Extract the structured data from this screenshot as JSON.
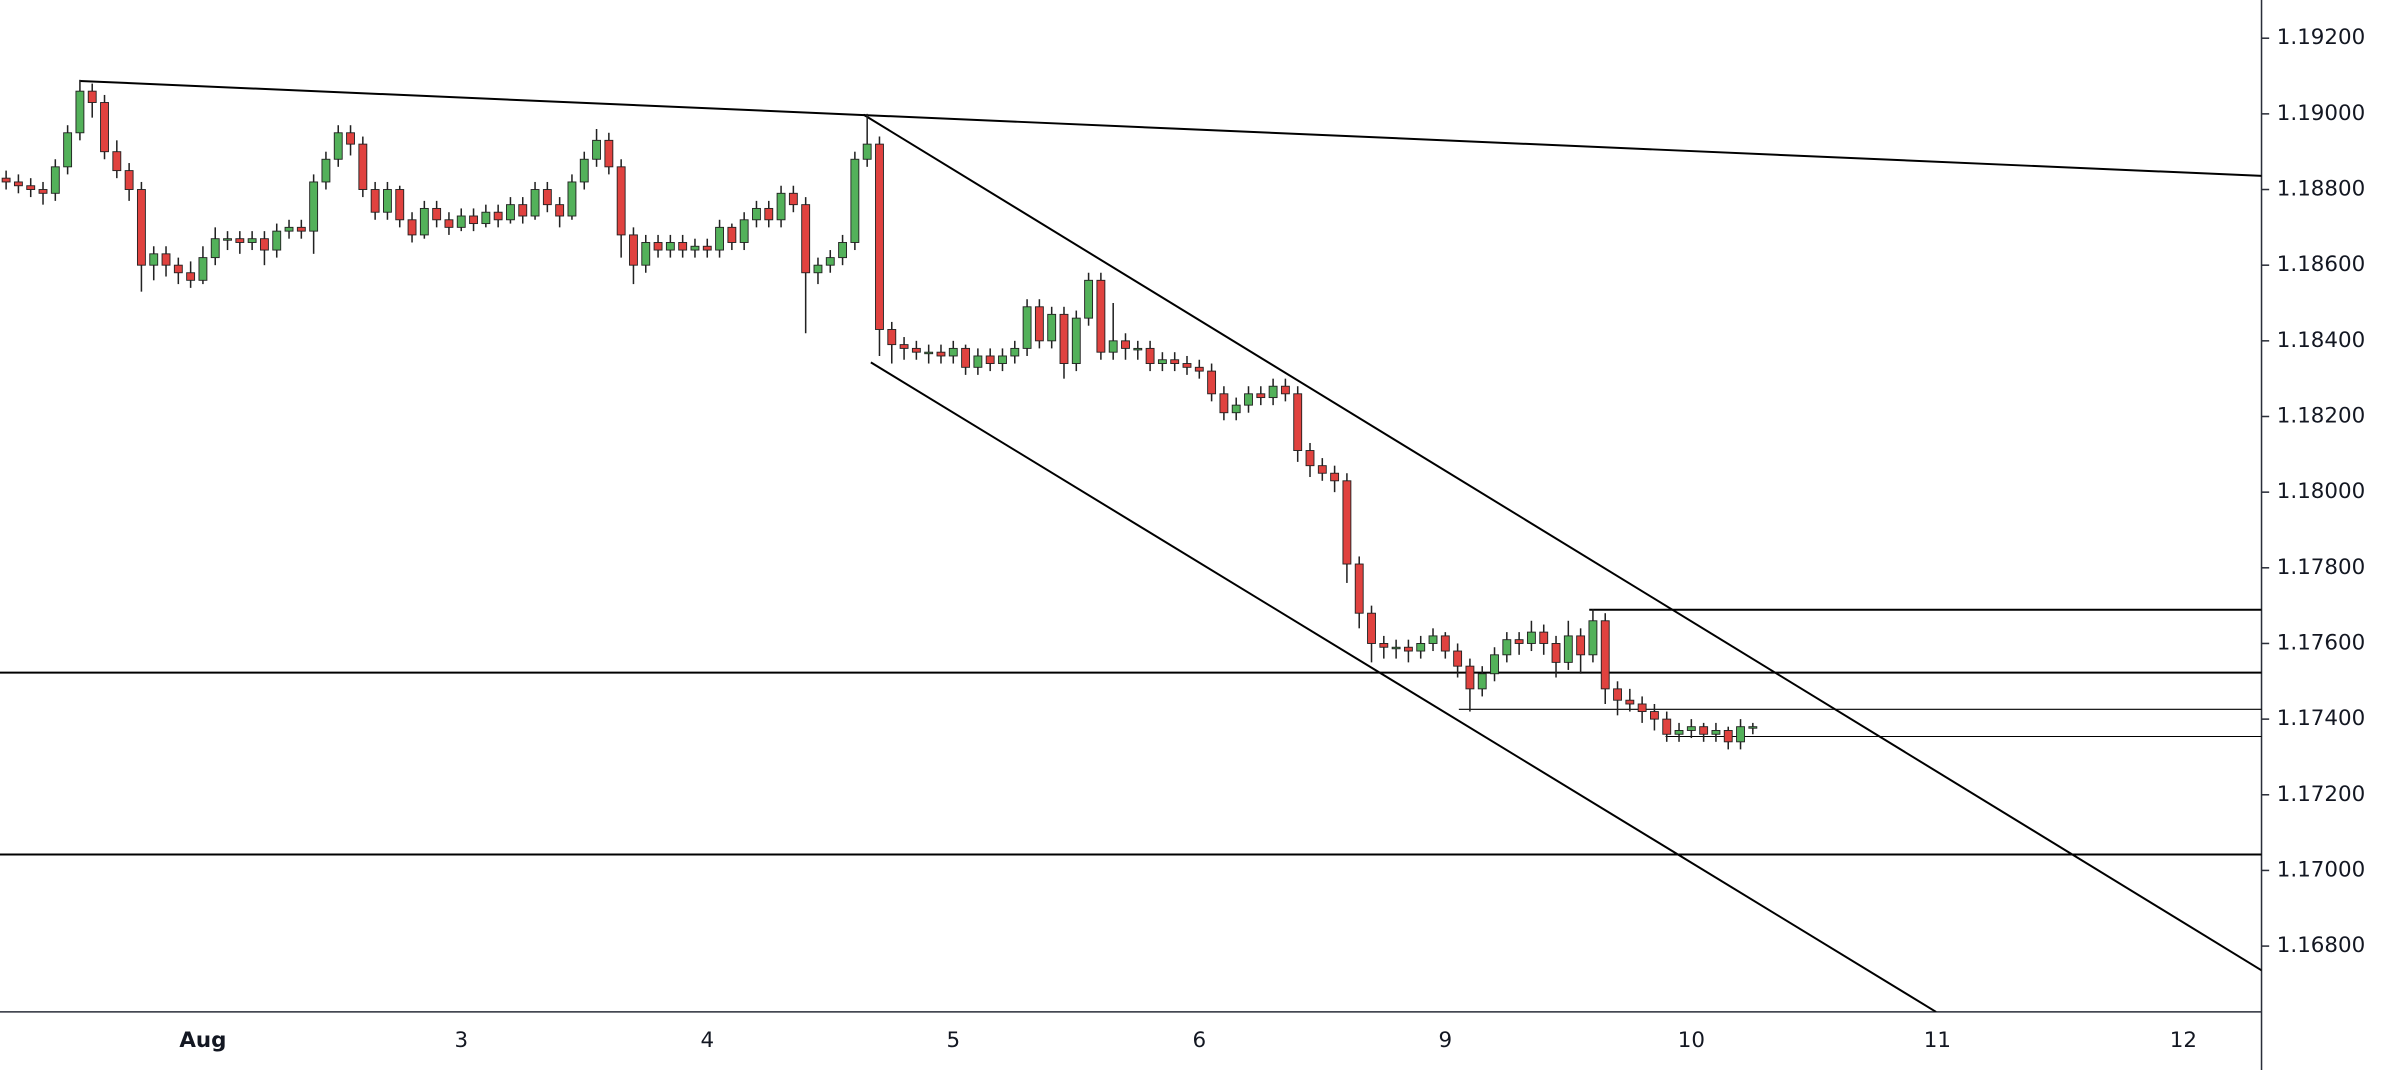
{
  "chart_data": {
    "type": "candlestick",
    "categories": [
      null,
      null,
      null,
      null,
      null,
      null,
      null,
      null,
      null,
      null,
      null,
      null,
      null,
      null,
      null,
      null,
      "Aug",
      null,
      null,
      null,
      null,
      null,
      null,
      null,
      null,
      null,
      null,
      null,
      null,
      null,
      null,
      null,
      null,
      null,
      null,
      null,
      null,
      "3",
      null,
      null,
      null,
      null,
      null,
      null,
      null,
      null,
      null,
      null,
      null,
      null,
      null,
      null,
      null,
      null,
      null,
      null,
      null,
      "4",
      null,
      null,
      null,
      null,
      null,
      null,
      null,
      null,
      null,
      null,
      null,
      null,
      null,
      null,
      null,
      null,
      null,
      null,
      null,
      "5",
      null,
      null,
      null,
      null,
      null,
      null,
      null,
      null,
      null,
      null,
      null,
      null,
      null,
      null,
      null,
      null,
      null,
      null,
      null,
      "6",
      null,
      null,
      null,
      null,
      null,
      null,
      null,
      null,
      null,
      null,
      null,
      null,
      null,
      null,
      null,
      null,
      null,
      null,
      null,
      "9",
      null,
      null,
      null,
      null,
      null,
      null,
      null,
      null,
      null,
      null,
      null,
      null,
      null,
      null,
      null,
      null,
      null,
      null,
      null,
      "10",
      null,
      null,
      null,
      null,
      null,
      null,
      null,
      null,
      null,
      null,
      null,
      null,
      null,
      null,
      null,
      null,
      null,
      null,
      null,
      "11",
      null,
      null,
      null,
      null,
      null,
      null,
      null,
      null,
      null,
      null,
      null,
      null,
      null,
      null,
      null,
      null,
      null,
      null,
      null,
      "12"
    ],
    "open": [
      1.1883,
      1.1882,
      1.1881,
      1.188,
      1.1879,
      1.1886,
      1.1895,
      1.1906,
      1.1903,
      1.189,
      1.1885,
      1.188,
      1.186,
      1.1863,
      1.186,
      1.1858,
      1.1856,
      1.1862,
      1.1867,
      1.1867,
      1.1866,
      1.1867,
      1.1864,
      1.1869,
      1.187,
      1.1869,
      1.1882,
      1.1888,
      1.1895,
      1.1892,
      1.188,
      1.1874,
      1.188,
      1.1872,
      1.1868,
      1.1875,
      1.1872,
      1.187,
      1.1873,
      1.1871,
      1.1874,
      1.1872,
      1.1876,
      1.1873,
      1.188,
      1.1876,
      1.1873,
      1.1882,
      1.1888,
      1.1893,
      1.1886,
      1.1868,
      1.186,
      1.1866,
      1.1864,
      1.1866,
      1.1864,
      1.1865,
      1.1864,
      1.187,
      1.1866,
      1.1872,
      1.1875,
      1.1872,
      1.1879,
      1.1876,
      1.1858,
      1.186,
      1.1862,
      1.1866,
      1.1888,
      1.1892,
      1.1843,
      1.1839,
      1.1838,
      1.1837,
      1.1837,
      1.1836,
      1.1838,
      1.1833,
      1.1836,
      1.1834,
      1.1836,
      1.1838,
      1.1849,
      1.184,
      1.1847,
      1.1834,
      1.1846,
      1.1856,
      1.1837,
      1.184,
      1.1838,
      1.1838,
      1.1834,
      1.1835,
      1.1834,
      1.1833,
      1.1832,
      1.1826,
      1.1821,
      1.1823,
      1.1826,
      1.1825,
      1.1828,
      1.1826,
      1.1811,
      1.1807,
      1.1805,
      1.1803,
      1.1781,
      1.1768,
      1.176,
      1.1759,
      1.1759,
      1.1758,
      1.176,
      1.1762,
      1.1758,
      1.1754,
      1.1748,
      1.1752,
      1.1757,
      1.1761,
      1.176,
      1.1763,
      1.176,
      1.1755,
      1.1762,
      1.1757,
      1.1766,
      1.1748,
      1.1745,
      1.1744,
      1.1742,
      1.174,
      1.1736,
      1.1737,
      1.1738,
      1.1736,
      1.1737,
      1.1734,
      1.1738,
      null,
      null,
      null,
      null,
      null,
      null,
      null,
      null,
      null,
      null,
      null,
      null,
      null,
      null,
      null,
      null,
      null,
      null,
      null,
      null,
      null,
      null,
      null,
      null,
      null,
      null,
      null,
      null,
      null,
      null,
      null,
      null,
      null,
      null,
      null
    ],
    "high": [
      1.1885,
      1.1884,
      1.1883,
      1.1882,
      1.1888,
      1.1897,
      1.1909,
      1.1908,
      1.1905,
      1.1893,
      1.1887,
      1.1882,
      1.1865,
      1.1865,
      1.1862,
      1.1861,
      1.1865,
      1.187,
      1.1869,
      1.1869,
      1.1869,
      1.1869,
      1.1871,
      1.1872,
      1.1872,
      1.1884,
      1.189,
      1.1897,
      1.1897,
      1.1894,
      1.1882,
      1.1882,
      1.1881,
      1.1874,
      1.1877,
      1.1877,
      1.1874,
      1.1875,
      1.1875,
      1.1876,
      1.1876,
      1.1878,
      1.1878,
      1.1882,
      1.1882,
      1.1878,
      1.1884,
      1.189,
      1.1896,
      1.1895,
      1.1888,
      1.187,
      1.1868,
      1.1868,
      1.1868,
      1.1868,
      1.1867,
      1.1867,
      1.1872,
      1.1871,
      1.1874,
      1.1877,
      1.1877,
      1.1881,
      1.1881,
      1.1878,
      1.1862,
      1.1864,
      1.1868,
      1.189,
      1.19,
      1.1894,
      1.1845,
      1.1841,
      1.184,
      1.1839,
      1.1839,
      1.184,
      1.1839,
      1.1838,
      1.1838,
      1.1838,
      1.184,
      1.1851,
      1.1851,
      1.1849,
      1.1849,
      1.1848,
      1.1858,
      1.1858,
      1.185,
      1.1842,
      1.184,
      1.184,
      1.1837,
      1.1837,
      1.1836,
      1.1835,
      1.1834,
      1.1828,
      1.1825,
      1.1828,
      1.1828,
      1.183,
      1.183,
      1.1828,
      1.1813,
      1.1809,
      1.1807,
      1.1805,
      1.1783,
      1.177,
      1.1762,
      1.1761,
      1.1761,
      1.1762,
      1.1764,
      1.1763,
      1.176,
      1.1756,
      1.1754,
      1.1759,
      1.1763,
      1.1763,
      1.1766,
      1.1765,
      1.1762,
      1.1766,
      1.1764,
      1.1769,
      1.1768,
      1.175,
      1.1748,
      1.1746,
      1.1744,
      1.1742,
      1.1739,
      1.174,
      1.1739,
      1.1739,
      1.1738,
      1.174,
      1.1739,
      null,
      null,
      null,
      null,
      null,
      null,
      null,
      null,
      null,
      null,
      null,
      null,
      null,
      null,
      null,
      null,
      null,
      null,
      null,
      null,
      null,
      null,
      null,
      null,
      null,
      null,
      null,
      null,
      null,
      null,
      null,
      null,
      null,
      null,
      null
    ],
    "low": [
      1.188,
      1.1879,
      1.1878,
      1.1876,
      1.1877,
      1.1884,
      1.1893,
      1.1899,
      1.1888,
      1.1883,
      1.1877,
      1.1853,
      1.1856,
      1.1857,
      1.1855,
      1.1854,
      1.1855,
      1.186,
      1.1864,
      1.1863,
      1.1864,
      1.186,
      1.1862,
      1.1867,
      1.1867,
      1.1863,
      1.188,
      1.1886,
      1.1889,
      1.1878,
      1.1872,
      1.1872,
      1.187,
      1.1866,
      1.1867,
      1.187,
      1.1868,
      1.1869,
      1.1869,
      1.187,
      1.187,
      1.1871,
      1.1871,
      1.1872,
      1.1874,
      1.187,
      1.1872,
      1.188,
      1.1886,
      1.1884,
      1.1862,
      1.1855,
      1.1858,
      1.1862,
      1.1862,
      1.1862,
      1.1862,
      1.1862,
      1.1862,
      1.1864,
      1.1864,
      1.187,
      1.187,
      1.187,
      1.1874,
      1.1842,
      1.1855,
      1.1858,
      1.186,
      1.1864,
      1.1886,
      1.1836,
      1.1834,
      1.1835,
      1.1835,
      1.1834,
      1.1834,
      1.1834,
      1.1831,
      1.1831,
      1.1832,
      1.1832,
      1.1834,
      1.1836,
      1.1838,
      1.1838,
      1.183,
      1.1832,
      1.1844,
      1.1835,
      1.1835,
      1.1835,
      1.1835,
      1.1832,
      1.1832,
      1.1832,
      1.1831,
      1.183,
      1.1824,
      1.1819,
      1.1819,
      1.1821,
      1.1823,
      1.1823,
      1.1824,
      1.1808,
      1.1804,
      1.1803,
      1.18,
      1.1776,
      1.1764,
      1.1755,
      1.1756,
      1.1756,
      1.1755,
      1.1756,
      1.1758,
      1.1756,
      1.1751,
      1.1742,
      1.1746,
      1.175,
      1.1755,
      1.1757,
      1.1758,
      1.1757,
      1.1751,
      1.1753,
      1.1752,
      1.1755,
      1.1744,
      1.1741,
      1.1742,
      1.1739,
      1.1737,
      1.1734,
      1.1734,
      1.1735,
      1.1734,
      1.1734,
      1.1732,
      1.1732,
      1.1736,
      null,
      null,
      null,
      null,
      null,
      null,
      null,
      null,
      null,
      null,
      null,
      null,
      null,
      null,
      null,
      null,
      null,
      null,
      null,
      null,
      null,
      null,
      null,
      null,
      null,
      null,
      null,
      null,
      null,
      null,
      null,
      null,
      null,
      null,
      null
    ],
    "close": [
      1.1882,
      1.1881,
      1.188,
      1.1879,
      1.1886,
      1.1895,
      1.1906,
      1.1903,
      1.189,
      1.1885,
      1.188,
      1.186,
      1.1863,
      1.186,
      1.1858,
      1.1856,
      1.1862,
      1.1867,
      1.1867,
      1.1866,
      1.1867,
      1.1864,
      1.1869,
      1.187,
      1.1869,
      1.1882,
      1.1888,
      1.1895,
      1.1892,
      1.188,
      1.1874,
      1.188,
      1.1872,
      1.1868,
      1.1875,
      1.1872,
      1.187,
      1.1873,
      1.1871,
      1.1874,
      1.1872,
      1.1876,
      1.1873,
      1.188,
      1.1876,
      1.1873,
      1.1882,
      1.1888,
      1.1893,
      1.1886,
      1.1868,
      1.186,
      1.1866,
      1.1864,
      1.1866,
      1.1864,
      1.1865,
      1.1864,
      1.187,
      1.1866,
      1.1872,
      1.1875,
      1.1872,
      1.1879,
      1.1876,
      1.1858,
      1.186,
      1.1862,
      1.1866,
      1.1888,
      1.1892,
      1.1843,
      1.1839,
      1.1838,
      1.1837,
      1.1837,
      1.1836,
      1.1838,
      1.1833,
      1.1836,
      1.1834,
      1.1836,
      1.1838,
      1.1849,
      1.184,
      1.1847,
      1.1834,
      1.1846,
      1.1856,
      1.1837,
      1.184,
      1.1838,
      1.1838,
      1.1834,
      1.1835,
      1.1834,
      1.1833,
      1.1832,
      1.1826,
      1.1821,
      1.1823,
      1.1826,
      1.1825,
      1.1828,
      1.1826,
      1.1811,
      1.1807,
      1.1805,
      1.1803,
      1.1781,
      1.1768,
      1.176,
      1.1759,
      1.1759,
      1.1758,
      1.176,
      1.1762,
      1.1758,
      1.1754,
      1.1748,
      1.1752,
      1.1757,
      1.1761,
      1.176,
      1.1763,
      1.176,
      1.1755,
      1.1762,
      1.1757,
      1.1766,
      1.1748,
      1.1745,
      1.1744,
      1.1742,
      1.174,
      1.1736,
      1.1737,
      1.1738,
      1.1736,
      1.1737,
      1.1734,
      1.1738,
      1.1738,
      null,
      null,
      null,
      null,
      null,
      null,
      null,
      null,
      null,
      null,
      null,
      null,
      null,
      null,
      null,
      null,
      null,
      null,
      null,
      null,
      null,
      null,
      null,
      null,
      null,
      null,
      null,
      null,
      null,
      null,
      null,
      null,
      null,
      null,
      null
    ],
    "up_color": "#53b15a",
    "down_color": "#e0423f",
    "ylim": [
      1.16626,
      1.19301
    ],
    "yticks": [
      {
        "value": 1.168,
        "label": "1.16800"
      },
      {
        "value": 1.17,
        "label": "1.17000"
      },
      {
        "value": 1.172,
        "label": "1.17200"
      },
      {
        "value": 1.174,
        "label": "1.17400"
      },
      {
        "value": 1.176,
        "label": "1.17600"
      },
      {
        "value": 1.178,
        "label": "1.17800"
      },
      {
        "value": 1.18,
        "label": "1.18000"
      },
      {
        "value": 1.182,
        "label": "1.18200"
      },
      {
        "value": 1.184,
        "label": "1.18400"
      },
      {
        "value": 1.186,
        "label": "1.18600"
      },
      {
        "value": 1.188,
        "label": "1.18800"
      },
      {
        "value": 1.19,
        "label": "1.19000"
      },
      {
        "value": 1.192,
        "label": "1.19200"
      }
    ],
    "horizontal_lines": [
      1.17523,
      1.17042
    ],
    "rays": [
      {
        "start": 128.7,
        "price": 1.17689
      },
      {
        "start": 118.1,
        "price": 1.17426
      },
      {
        "start": 134.9,
        "price": 1.17354
      }
    ],
    "trend_lines": [
      {
        "x": [
          6,
          183.4
        ],
        "y": [
          1.19087,
          1.18836
        ]
      },
      {
        "x": [
          69.7,
          183.4
        ],
        "y": [
          1.18998,
          1.16735
        ]
      },
      {
        "x": [
          70.3,
          156.9
        ],
        "y": [
          1.18343,
          1.16626
        ]
      }
    ],
    "grid": false
  }
}
